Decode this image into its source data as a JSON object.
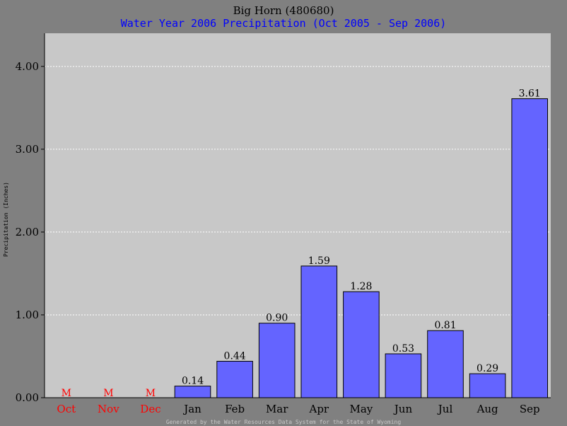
{
  "chart_data": {
    "type": "bar",
    "title": "Big Horn (480680)",
    "subtitle": "Water Year 2006 Precipitation (Oct 2005 - Sep 2006)",
    "ylabel": "Precipitation (Inches)",
    "xlabel": "",
    "categories": [
      "Oct",
      "Nov",
      "Dec",
      "Jan",
      "Feb",
      "Mar",
      "Apr",
      "May",
      "Jun",
      "Jul",
      "Aug",
      "Sep"
    ],
    "values": [
      null,
      null,
      null,
      0.14,
      0.44,
      0.9,
      1.59,
      1.28,
      0.53,
      0.81,
      0.29,
      3.61
    ],
    "value_labels": [
      "M",
      "M",
      "M",
      "0.14",
      "0.44",
      "0.90",
      "1.59",
      "1.28",
      "0.53",
      "0.81",
      "0.29",
      "3.61"
    ],
    "missing_flag": [
      true,
      true,
      true,
      false,
      false,
      false,
      false,
      false,
      false,
      false,
      false,
      false
    ],
    "ylim": [
      0,
      4.4
    ],
    "yticks": [
      0,
      1,
      2,
      3,
      4
    ],
    "ytick_labels": [
      "0.00",
      "1.00",
      "2.00",
      "3.00",
      "4.00"
    ],
    "grid": true
  },
  "footer": "Generated by the Water Resources Data System for the State of Wyoming",
  "colors": {
    "page_background": "#808080",
    "plot_background": "#c8c8c8",
    "bar_fill": "#6464ff",
    "bar_stroke": "#000000",
    "grid": "#ffffff",
    "title": "#000000",
    "subtitle": "#0000ff",
    "missing": "#ff0000",
    "text": "#000000"
  }
}
